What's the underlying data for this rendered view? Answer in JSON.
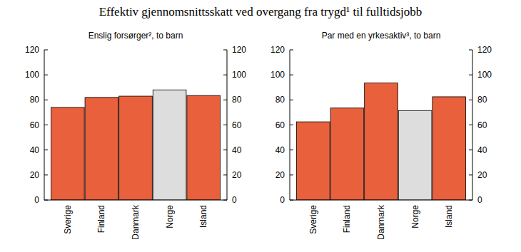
{
  "title": "Effektiv gjennomsnittsskatt ved overgang fra trygd¹ til fulltidsjobb",
  "chart_data": [
    {
      "type": "bar",
      "title": "Enslig forsørger², to barn",
      "categories": [
        "Sverige",
        "Finland",
        "Danmark",
        "Norge",
        "Island"
      ],
      "values": [
        74,
        82,
        83,
        88,
        83.5
      ],
      "colors": [
        "#e8603c",
        "#e8603c",
        "#e8603c",
        "#dddddd",
        "#e8603c"
      ],
      "ylim": [
        0,
        120
      ],
      "yticks": [
        0,
        20,
        40,
        60,
        80,
        100,
        120
      ],
      "y2lim": [
        0,
        120
      ],
      "y2ticks": [
        0,
        20,
        40,
        60,
        80,
        100,
        120
      ],
      "grid": false
    },
    {
      "type": "bar",
      "title": "Par med en yrkesaktiv³, to barn",
      "categories": [
        "Sverige",
        "Finland",
        "Danmark",
        "Norge",
        "Island"
      ],
      "values": [
        62.5,
        73.5,
        93.5,
        71.5,
        82.5
      ],
      "colors": [
        "#e8603c",
        "#e8603c",
        "#e8603c",
        "#dddddd",
        "#e8603c"
      ],
      "ylim": [
        0,
        120
      ],
      "yticks": [
        0,
        20,
        40,
        60,
        80,
        100,
        120
      ],
      "y2lim": [
        0,
        120
      ],
      "y2ticks": [
        0,
        20,
        40,
        60,
        80,
        100,
        120
      ],
      "grid": false
    }
  ]
}
